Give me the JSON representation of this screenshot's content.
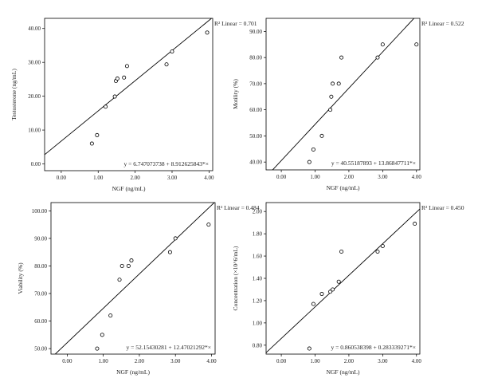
{
  "chart_data": [
    {
      "type": "scatter",
      "xlabel": "NGF (ng/mL)",
      "ylabel": "Testosterone (ng/mL)",
      "r2_label": "R² Linear = 0.701",
      "equation": "y = 6.747073738 + 8.912625843*×",
      "intercept": 6.747073738,
      "slope": 8.912625843,
      "xlim": [
        -0.45,
        4.1
      ],
      "ylim": [
        -2,
        43
      ],
      "x_ticks": [
        0,
        1,
        2,
        3,
        4
      ],
      "x_tick_labels": [
        "0.00",
        "1.00",
        "2.00",
        "3.00",
        "4.00"
      ],
      "y_ticks": [
        0,
        10,
        20,
        30,
        40
      ],
      "y_tick_labels": [
        "0.00",
        "10.00",
        "20.00",
        "30.00",
        "40.00"
      ],
      "points": [
        {
          "x": 0.83,
          "y": 6.0
        },
        {
          "x": 0.97,
          "y": 8.5
        },
        {
          "x": 1.2,
          "y": 16.9
        },
        {
          "x": 1.45,
          "y": 19.9
        },
        {
          "x": 1.48,
          "y": 24.5
        },
        {
          "x": 1.52,
          "y": 25.2
        },
        {
          "x": 1.7,
          "y": 25.5
        },
        {
          "x": 1.78,
          "y": 28.9
        },
        {
          "x": 2.85,
          "y": 29.4
        },
        {
          "x": 3.0,
          "y": 33.2
        },
        {
          "x": 3.95,
          "y": 38.8
        }
      ]
    },
    {
      "type": "scatter",
      "xlabel": "NGF (ng/mL)",
      "ylabel": "Motility (%)",
      "r2_label": "R² Linear = 0.522",
      "equation": "y = 40.55187893 + 13.86847711*×",
      "intercept": 40.55187893,
      "slope": 13.86847711,
      "xlim": [
        -0.45,
        4.1
      ],
      "ylim": [
        37,
        95
      ],
      "x_ticks": [
        0,
        1,
        2,
        3,
        4
      ],
      "x_tick_labels": [
        "0.00",
        "1.00",
        "2.00",
        "3.00",
        "4.00"
      ],
      "y_ticks": [
        40,
        50,
        60,
        70,
        80,
        90
      ],
      "y_tick_labels": [
        "40.00",
        "50.00",
        "60.00",
        "70.00",
        "80.00",
        "90.00"
      ],
      "points": [
        {
          "x": 0.83,
          "y": 40.0
        },
        {
          "x": 0.95,
          "y": 44.8
        },
        {
          "x": 1.2,
          "y": 50.0
        },
        {
          "x": 1.45,
          "y": 60.0
        },
        {
          "x": 1.48,
          "y": 65.0
        },
        {
          "x": 1.52,
          "y": 70.0
        },
        {
          "x": 1.7,
          "y": 70.0
        },
        {
          "x": 1.78,
          "y": 80.0
        },
        {
          "x": 2.85,
          "y": 80.0
        },
        {
          "x": 3.0,
          "y": 85.0
        },
        {
          "x": 4.0,
          "y": 85.0
        }
      ]
    },
    {
      "type": "scatter",
      "xlabel": "NGF (ng/mL)",
      "ylabel": "Viability (%)",
      "r2_label": "R² Linear = 0.484",
      "equation": "y = 52.15430281 + 12.47021292*×",
      "intercept": 52.15430281,
      "slope": 12.47021292,
      "xlim": [
        -0.45,
        4.1
      ],
      "ylim": [
        48,
        103
      ],
      "x_ticks": [
        0,
        1,
        2,
        3,
        4
      ],
      "x_tick_labels": [
        "0.00",
        "1.00",
        "2.00",
        "3.00",
        "4.00"
      ],
      "y_ticks": [
        50,
        60,
        70,
        80,
        90,
        100
      ],
      "y_tick_labels": [
        "50.00",
        "60.00",
        "70.00",
        "80.00",
        "90.00",
        "100.00"
      ],
      "points": [
        {
          "x": 0.83,
          "y": 50.0
        },
        {
          "x": 0.97,
          "y": 55.0
        },
        {
          "x": 1.2,
          "y": 62.0
        },
        {
          "x": 1.45,
          "y": 75.0
        },
        {
          "x": 1.52,
          "y": 80.0
        },
        {
          "x": 1.7,
          "y": 80.0
        },
        {
          "x": 1.78,
          "y": 82.0
        },
        {
          "x": 2.85,
          "y": 85.0
        },
        {
          "x": 3.0,
          "y": 90.0
        },
        {
          "x": 3.92,
          "y": 95.0
        }
      ]
    },
    {
      "type": "scatter",
      "xlabel": "NGF (ng/mL)",
      "ylabel": "Concentration (×10^6/mL)",
      "r2_label": "R² Linear = 0.450",
      "equation": "y = 0.860538398 + 0.283339271*×",
      "intercept": 0.860538398,
      "slope": 0.283339271,
      "xlim": [
        -0.45,
        4.1
      ],
      "ylim": [
        0.72,
        2.08
      ],
      "x_ticks": [
        0,
        1,
        2,
        3,
        4
      ],
      "x_tick_labels": [
        "0.00",
        "1.00",
        "2.00",
        "3.00",
        "4.00"
      ],
      "y_ticks": [
        0.8,
        1.0,
        1.2,
        1.4,
        1.6,
        1.8,
        2.0
      ],
      "y_tick_labels": [
        "0.80",
        "1.00",
        "1.20",
        "1.40",
        "1.60",
        "1.80",
        "2.00"
      ],
      "points": [
        {
          "x": 0.83,
          "y": 0.77
        },
        {
          "x": 0.95,
          "y": 1.17
        },
        {
          "x": 1.2,
          "y": 1.26
        },
        {
          "x": 1.45,
          "y": 1.28
        },
        {
          "x": 1.52,
          "y": 1.3
        },
        {
          "x": 1.7,
          "y": 1.37
        },
        {
          "x": 1.78,
          "y": 1.64
        },
        {
          "x": 2.85,
          "y": 1.64
        },
        {
          "x": 3.0,
          "y": 1.69
        },
        {
          "x": 3.95,
          "y": 1.89
        }
      ]
    }
  ]
}
